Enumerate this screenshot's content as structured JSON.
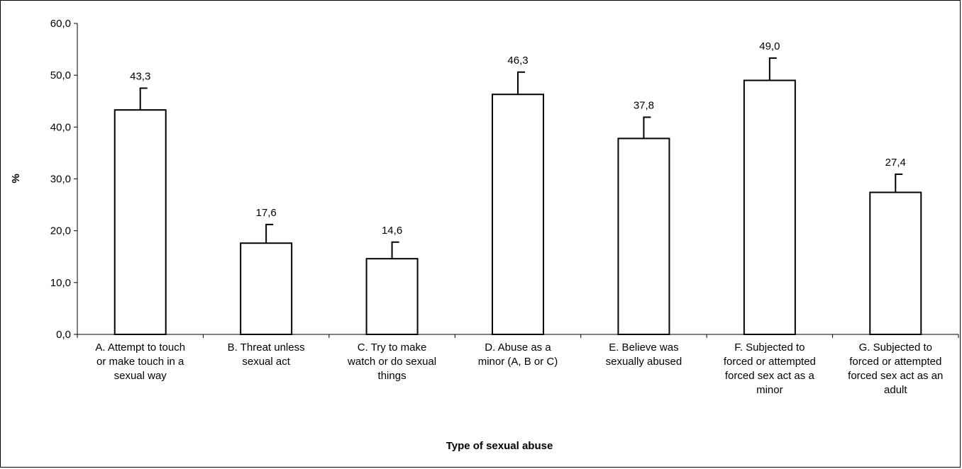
{
  "chart_data": {
    "type": "bar",
    "categories": [
      [
        "A. Attempt to touch",
        "or make touch in a",
        "sexual way"
      ],
      [
        "B. Threat unless",
        "sexual act"
      ],
      [
        "C. Try to make",
        "watch or do sexual",
        "things"
      ],
      [
        "D. Abuse as a",
        "minor (A, B or C)"
      ],
      [
        "E. Believe was",
        "sexually abused"
      ],
      [
        "F. Subjected to",
        "forced or attempted",
        "forced sex act as a",
        "minor"
      ],
      [
        "G. Subjected to",
        "forced or attempted",
        "forced sex act as an",
        "adult"
      ]
    ],
    "values": [
      43.3,
      17.6,
      14.6,
      46.3,
      37.8,
      49.0,
      27.4
    ],
    "value_labels": [
      "43,3",
      "17,6",
      "14,6",
      "46,3",
      "37,8",
      "49,0",
      "27,4"
    ],
    "error_upper": [
      47.5,
      21.2,
      17.8,
      50.6,
      41.9,
      53.3,
      30.9
    ],
    "ylim": [
      0,
      60
    ],
    "yticks": [
      0,
      10,
      20,
      30,
      40,
      50,
      60
    ],
    "ytick_labels": [
      "0,0",
      "10,0",
      "20,0",
      "30,0",
      "40,0",
      "50,0",
      "60,0"
    ],
    "xlabel": "Type of sexual abuse",
    "ylabel": "%",
    "grid": false,
    "bar_fill": "#ffffff",
    "bar_stroke": "#000000"
  }
}
